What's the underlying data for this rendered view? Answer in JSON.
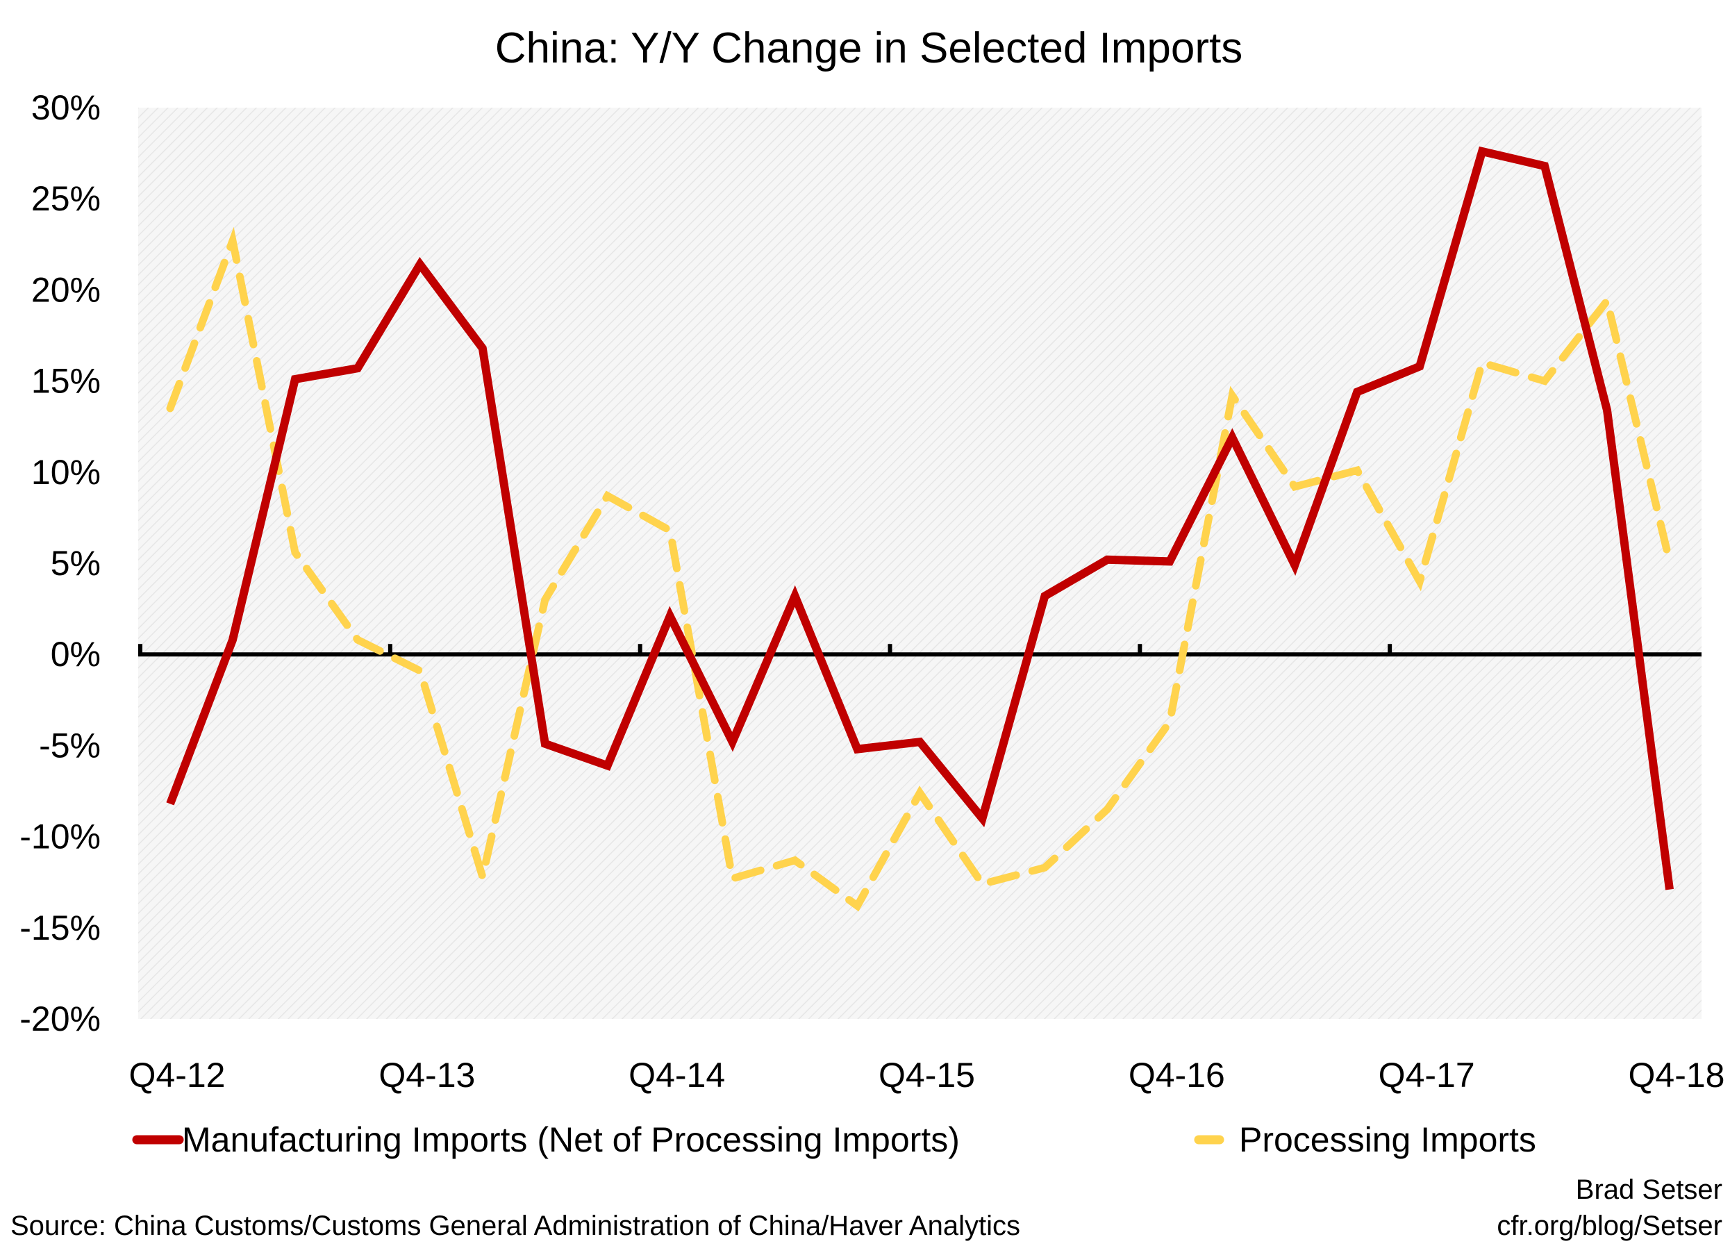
{
  "chart_data": {
    "type": "line",
    "title": "China: Y/Y Change in Selected Imports",
    "xlabel": "",
    "ylabel": "",
    "ylim": [
      -20,
      30
    ],
    "y_ticks": [
      30,
      25,
      20,
      15,
      10,
      5,
      0,
      -5,
      -10,
      -15,
      -20
    ],
    "y_tick_labels": [
      "30%",
      "25%",
      "20%",
      "15%",
      "10%",
      "5%",
      "0%",
      "-5%",
      "-10%",
      "-15%",
      "-20%"
    ],
    "x_tick_labels": [
      "Q4-12",
      "Q4-13",
      "Q4-14",
      "Q4-15",
      "Q4-16",
      "Q4-17",
      "Q4-18"
    ],
    "x_tick_index": [
      0,
      4,
      8,
      12,
      16,
      20,
      24
    ],
    "x": [
      "Q4-12",
      "Q1-13",
      "Q2-13",
      "Q3-13",
      "Q4-13",
      "Q1-14",
      "Q2-14",
      "Q3-14",
      "Q4-14",
      "Q1-15",
      "Q2-15",
      "Q3-15",
      "Q4-15",
      "Q1-16",
      "Q2-16",
      "Q3-16",
      "Q4-16",
      "Q1-17",
      "Q2-17",
      "Q3-17",
      "Q4-17",
      "Q1-18",
      "Q2-18",
      "Q3-18",
      "Q4-18"
    ],
    "series": [
      {
        "name": "Manufacturing Imports (Net of Processing Imports)",
        "color": "#c00000",
        "style": "solid",
        "values": [
          -8.2,
          0.8,
          15.1,
          15.7,
          21.4,
          16.8,
          -4.9,
          -6.1,
          2.1,
          -4.8,
          3.2,
          -5.2,
          -4.8,
          -9.0,
          3.2,
          5.2,
          5.1,
          11.9,
          4.9,
          14.4,
          15.8,
          27.6,
          26.8,
          13.4,
          -12.9
        ]
      },
      {
        "name": "Processing Imports",
        "color": "#ffd34d",
        "style": "dashed",
        "values": [
          13.5,
          22.7,
          5.6,
          0.8,
          -0.9,
          -12.2,
          3.0,
          8.7,
          6.8,
          -12.3,
          -11.3,
          -13.8,
          -7.6,
          -12.6,
          -11.7,
          -8.5,
          -3.7,
          14.2,
          9.2,
          10.1,
          4.0,
          16.0,
          15.0,
          19.4,
          5.1
        ]
      }
    ],
    "grid": false,
    "legend_position": "bottom",
    "background": "light-grey-hatched",
    "source_note": "Source: China Customs/Customs General Administration of China/Haver Analytics",
    "credit_line1": "Brad Setser",
    "credit_line2": "cfr.org/blog/Setser"
  }
}
